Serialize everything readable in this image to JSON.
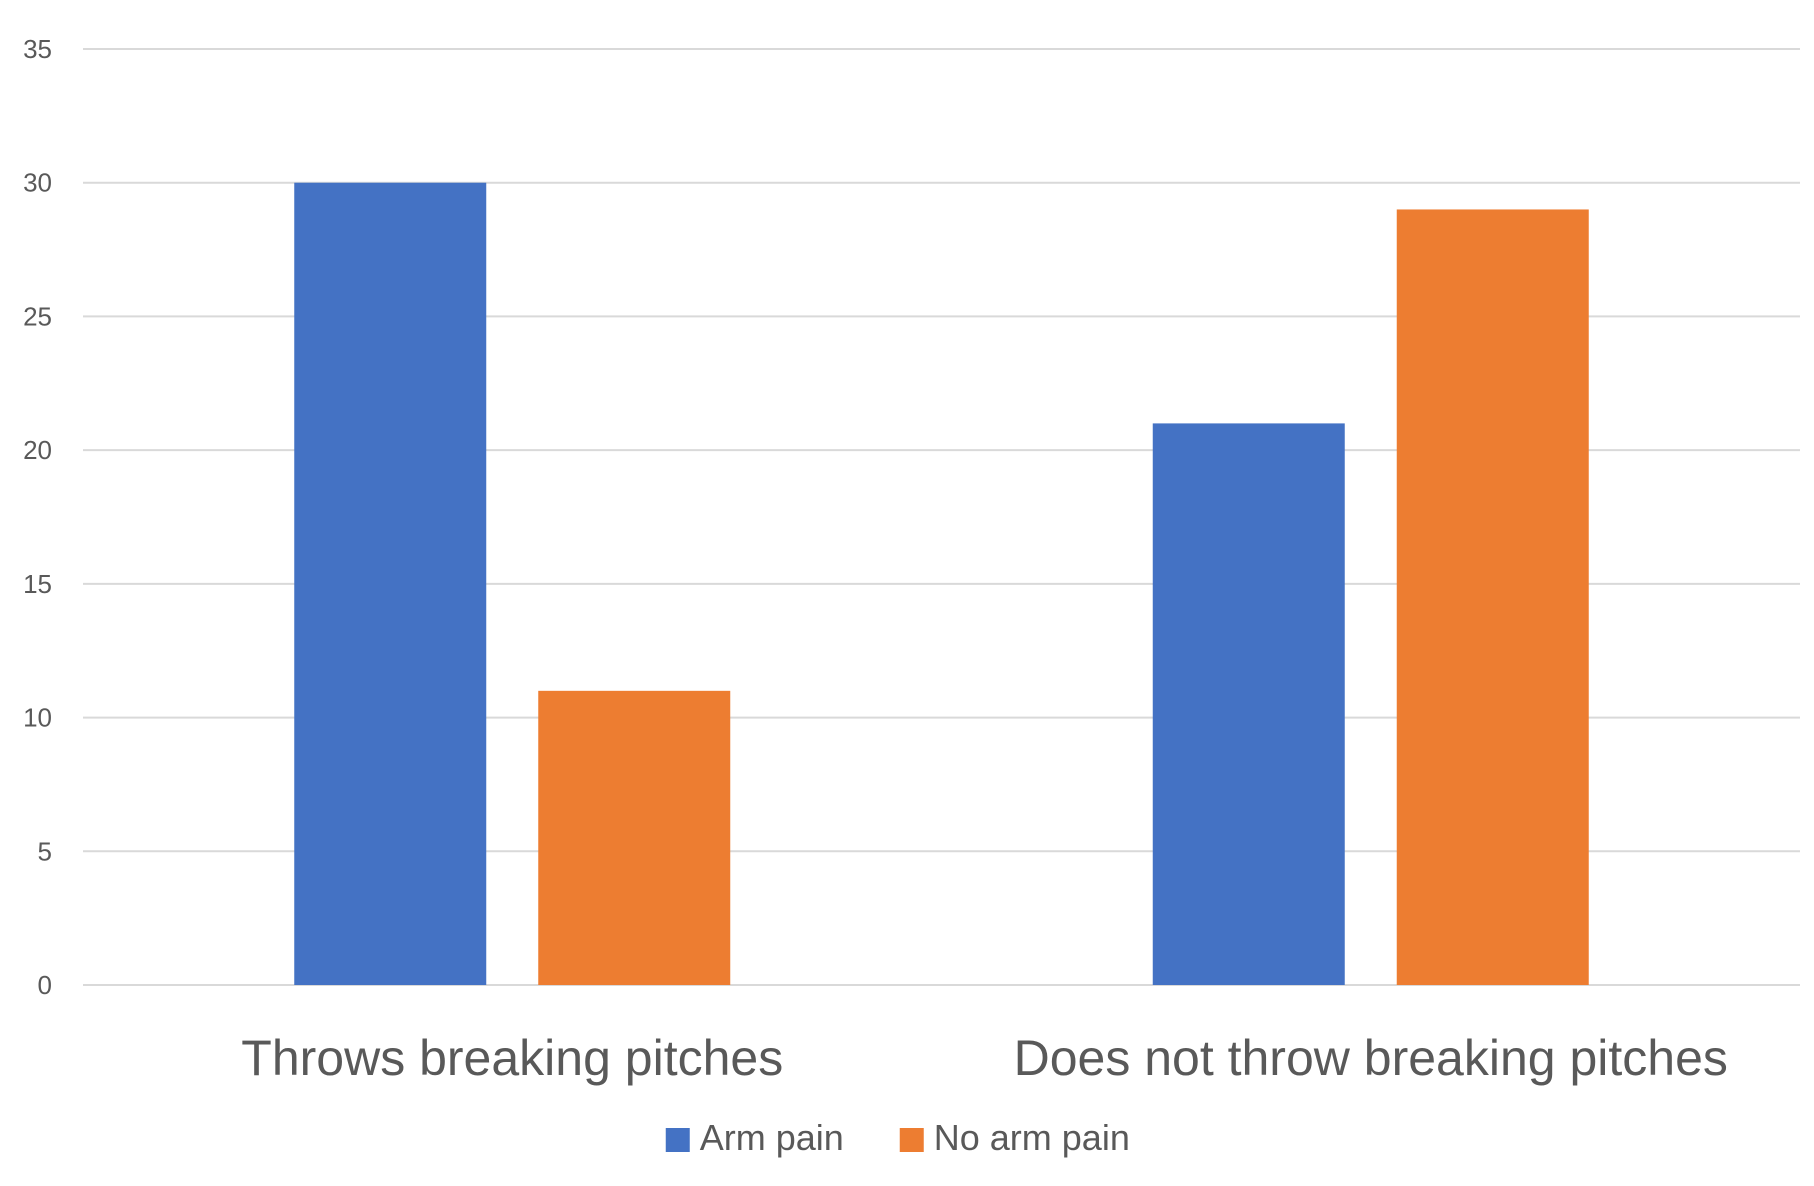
{
  "chart_data": {
    "type": "bar",
    "title": "",
    "xlabel": "",
    "ylabel": "",
    "categories": [
      "Throws breaking pitches",
      "Does not throw breaking pitches"
    ],
    "series": [
      {
        "name": "Arm pain",
        "values": [
          30,
          21
        ],
        "color": "#4472C4"
      },
      {
        "name": "No arm pain",
        "values": [
          11,
          29
        ],
        "color": "#ED7D31"
      }
    ],
    "ylim": [
      0,
      35
    ],
    "yticks": [
      0,
      5,
      10,
      15,
      20,
      25,
      30,
      35
    ],
    "grid": true,
    "legend_position": "bottom"
  }
}
